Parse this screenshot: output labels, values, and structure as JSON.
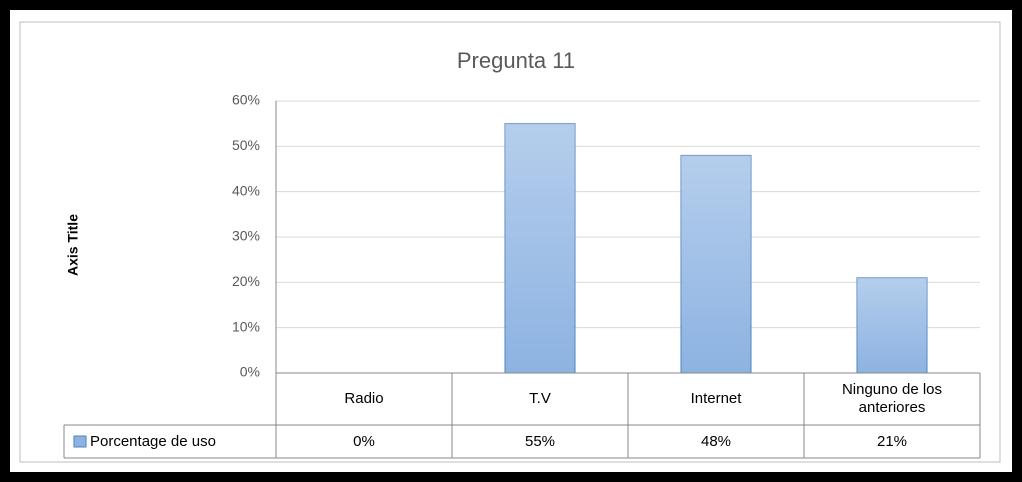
{
  "chart_data": {
    "type": "bar",
    "title": "Pregunta 11",
    "y_axis_label": "Axis Title",
    "categories": [
      "Radio",
      "T.V",
      "Internet",
      "Ninguno de los anteriores"
    ],
    "series": [
      {
        "name": "Porcentage de uso",
        "color": "#8db3e2",
        "values": [
          0,
          55,
          48,
          21
        ],
        "value_labels": [
          "0%",
          "55%",
          "48%",
          "21%"
        ]
      }
    ],
    "ylim": [
      0,
      60
    ],
    "yticks": [
      {
        "value": 0,
        "label": "0%"
      },
      {
        "value": 10,
        "label": "10%"
      },
      {
        "value": 20,
        "label": "20%"
      },
      {
        "value": 30,
        "label": "30%"
      },
      {
        "value": 40,
        "label": "40%"
      },
      {
        "value": 50,
        "label": "50%"
      },
      {
        "value": 60,
        "label": "60%"
      }
    ],
    "grid": true,
    "data_table": true
  }
}
